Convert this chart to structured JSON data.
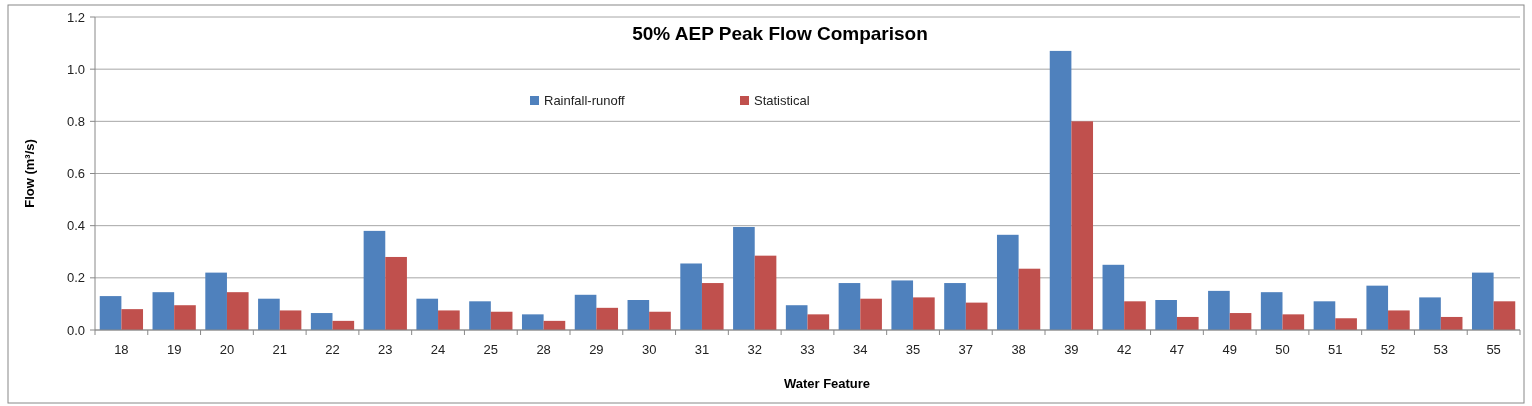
{
  "chart_data": {
    "type": "bar",
    "title": "50% AEP Peak Flow Comparison",
    "xlabel": "Water Feature",
    "ylabel": "Flow (m³/s)",
    "categories": [
      "18",
      "19",
      "20",
      "21",
      "22",
      "23",
      "24",
      "25",
      "28",
      "29",
      "30",
      "31",
      "32",
      "33",
      "34",
      "35",
      "37",
      "38",
      "39",
      "42",
      "47",
      "49",
      "50",
      "51",
      "52",
      "53",
      "55"
    ],
    "series": [
      {
        "name": "Rainfall-runoff",
        "color": "#4f81bd",
        "values": [
          0.13,
          0.145,
          0.22,
          0.12,
          0.065,
          0.38,
          0.12,
          0.11,
          0.06,
          0.135,
          0.115,
          0.255,
          0.395,
          0.095,
          0.18,
          0.19,
          0.18,
          0.365,
          1.07,
          0.25,
          0.115,
          0.15,
          0.145,
          0.11,
          0.17,
          0.125,
          0.22
        ]
      },
      {
        "name": "Statistical",
        "color": "#c0504d",
        "values": [
          0.08,
          0.095,
          0.145,
          0.075,
          0.035,
          0.28,
          0.075,
          0.07,
          0.035,
          0.085,
          0.07,
          0.18,
          0.285,
          0.06,
          0.12,
          0.125,
          0.105,
          0.235,
          0.8,
          0.11,
          0.05,
          0.065,
          0.06,
          0.045,
          0.075,
          0.05,
          0.11
        ]
      }
    ],
    "ylim": [
      0,
      1.2
    ],
    "yticks": [
      {
        "value": 0,
        "label": "0.0"
      },
      {
        "value": 0.2,
        "label": "0.2"
      },
      {
        "value": 0.4,
        "label": "0.4"
      },
      {
        "value": 0.6,
        "label": "0.6"
      },
      {
        "value": 0.8,
        "label": "0.8"
      },
      {
        "value": 1,
        "label": "1.0"
      },
      {
        "value": 1.2,
        "label": "1.2"
      }
    ],
    "grid": "y",
    "legend": "top"
  }
}
